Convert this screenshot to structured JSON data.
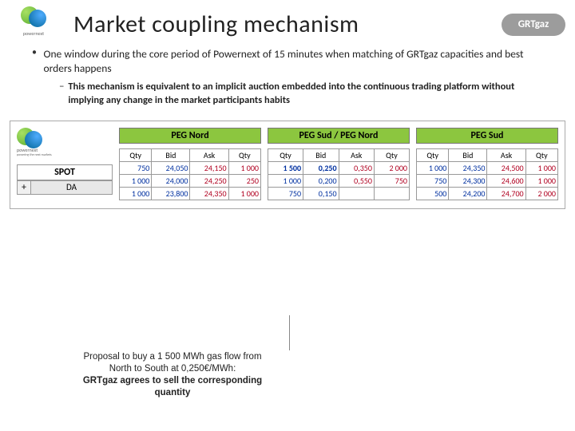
{
  "header": {
    "left_logo_text": "powernext",
    "title": "Market coupling mechanism",
    "right_logo_text": "GRTgaz"
  },
  "bullets": {
    "main": "One window during the core period of Powernext of 15 minutes when matching of GRTgaz capacities and best orders happens",
    "sub": "This mechanism is equivalent to an implicit auction embedded into the continuous trading platform without implying any change in the market participants habits"
  },
  "screenshot": {
    "brand_text": "powernext",
    "brand_tagline": "powering the next markets",
    "spot_label": "SPOT",
    "plus": "+",
    "da_label": "DA",
    "markets": [
      {
        "name": "PEG Nord",
        "headers": [
          "Qty",
          "Bid",
          "Ask",
          "Qty"
        ],
        "rows": [
          [
            "750",
            "24,050",
            "24,150",
            "1 000"
          ],
          [
            "1 000",
            "24,000",
            "24,250",
            "250"
          ],
          [
            "1 000",
            "23,800",
            "24,350",
            "1 000"
          ]
        ]
      },
      {
        "name": "PEG Sud / PEG Nord",
        "headers": [
          "Qty",
          "Bid",
          "Ask",
          "Qty"
        ],
        "rows": [
          [
            "1 500",
            "0,250",
            "0,350",
            "2 000"
          ],
          [
            "1 000",
            "0,200",
            "0,550",
            "750"
          ],
          [
            "750",
            "0,150",
            "",
            ""
          ]
        ]
      },
      {
        "name": "PEG Sud",
        "headers": [
          "Qty",
          "Bid",
          "Ask",
          "Qty"
        ],
        "rows": [
          [
            "1 000",
            "24,350",
            "24,500",
            "1 000"
          ],
          [
            "750",
            "24,300",
            "24,600",
            "1 000"
          ],
          [
            "500",
            "24,200",
            "24,700",
            "2 000"
          ]
        ]
      }
    ]
  },
  "proposal": {
    "l1": "Proposal to buy a 1 500 MWh gas flow from",
    "l2": "North to South at 0,250€/MWh:",
    "l3": "GRTgaz agrees to sell the corresponding",
    "l4": "quantity"
  },
  "colors": {
    "market_header_bg": "#8cc63f",
    "bid_color": "#0030a0",
    "ask_color": "#b00020",
    "right_logo_bg": "#9c9c9c"
  }
}
